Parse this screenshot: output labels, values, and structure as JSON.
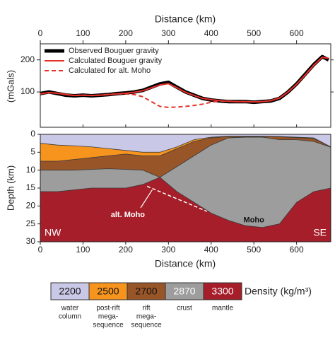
{
  "chart_data": [
    {
      "type": "line",
      "xlabel": "Distance (km)",
      "ylabel": "(mGals)",
      "xlim": [
        0,
        680
      ],
      "xticks": [
        0,
        100,
        200,
        300,
        400,
        500,
        600
      ],
      "ylim": [
        -10,
        250
      ],
      "yticks": [
        100,
        200
      ],
      "x": [
        0,
        20,
        40,
        60,
        80,
        100,
        120,
        140,
        160,
        180,
        200,
        220,
        240,
        260,
        280,
        300,
        320,
        340,
        360,
        380,
        400,
        420,
        440,
        460,
        480,
        500,
        520,
        540,
        560,
        580,
        600,
        620,
        640,
        660,
        675
      ],
      "series": [
        {
          "name": "Observed Bouguer gravity",
          "color": "#000000",
          "width": 5,
          "dash": false,
          "values": [
            95,
            100,
            95,
            90,
            88,
            90,
            88,
            90,
            92,
            95,
            97,
            100,
            105,
            115,
            125,
            130,
            115,
            100,
            90,
            80,
            75,
            72,
            70,
            70,
            70,
            68,
            70,
            72,
            80,
            100,
            125,
            155,
            185,
            210,
            200
          ]
        },
        {
          "name": "Calculated Bouguer gravity",
          "color": "#e8302a",
          "width": 2,
          "dash": false,
          "values": [
            94,
            98,
            96,
            92,
            89,
            90,
            89,
            90,
            92,
            94,
            96,
            99,
            104,
            113,
            122,
            126,
            113,
            99,
            89,
            80,
            76,
            73,
            71,
            70,
            70,
            69,
            70,
            73,
            81,
            100,
            124,
            153,
            183,
            208,
            205
          ]
        },
        {
          "name": "Calculated for alt. Moho",
          "color": "#e8302a",
          "width": 2,
          "dash": true,
          "values": [
            94,
            98,
            96,
            92,
            89,
            90,
            89,
            90,
            92,
            94,
            94,
            92,
            85,
            70,
            55,
            52,
            53,
            55,
            58,
            62,
            68,
            72,
            71,
            70,
            70,
            69,
            70,
            73,
            81,
            100,
            124,
            153,
            183,
            208,
            205
          ]
        }
      ],
      "legend": "upper-left"
    },
    {
      "type": "section",
      "xlabel": "Distance (km)",
      "ylabel": "Depth (km)",
      "xlim": [
        0,
        680
      ],
      "xticks": [
        0,
        100,
        200,
        300,
        400,
        500,
        600
      ],
      "ylim": [
        30,
        0
      ],
      "yticks": [
        0,
        5,
        10,
        15,
        20,
        25,
        30
      ],
      "x": [
        0,
        40,
        80,
        120,
        160,
        200,
        240,
        280,
        320,
        360,
        400,
        440,
        480,
        520,
        560,
        600,
        640,
        680
      ],
      "layers": [
        {
          "density": 2200,
          "color": "#c9c8e6",
          "name_lines": [
            "water",
            "column"
          ]
        },
        {
          "density": 2500,
          "color": "#f7941d",
          "name_lines": [
            "post-rift",
            "mega-",
            "sequence"
          ]
        },
        {
          "density": 2700,
          "color": "#985528",
          "name_lines": [
            "rift",
            "mega-",
            "sequence"
          ]
        },
        {
          "density": 2870,
          "color": "#9d9d9d",
          "name_lines": [
            "crust"
          ]
        },
        {
          "density": 3300,
          "color": "#a51e2a",
          "name_lines": [
            "mantle"
          ]
        }
      ],
      "boundaries": [
        [
          2.5,
          3,
          3.2,
          3.5,
          4,
          4.5,
          5,
          5,
          3.5,
          1.5,
          0.8,
          0.5,
          0.5,
          0.5,
          0.6,
          0.8,
          1,
          3.5
        ],
        [
          7.5,
          7.5,
          7,
          6.5,
          6,
          5.5,
          6,
          6,
          4,
          2,
          1,
          0.6,
          0.6,
          0.6,
          0.7,
          0.9,
          1.2,
          3.5
        ],
        [
          10,
          10,
          10,
          9.8,
          9.6,
          9.8,
          10,
          12,
          9,
          6,
          3,
          1,
          0.8,
          0.8,
          1.5,
          1.5,
          2,
          3.6
        ],
        [
          16,
          16,
          15.5,
          15,
          15,
          15,
          14,
          12,
          16,
          19,
          22,
          24,
          25.5,
          26,
          25,
          19,
          16,
          15
        ]
      ],
      "alt_moho": {
        "label": "alt. Moho",
        "x": [
          250,
          280,
          320,
          360,
          390
        ],
        "values": [
          14.5,
          16,
          18,
          20,
          21.5
        ]
      },
      "moho_label": "Moho",
      "left_label": "NW",
      "right_label": "SE",
      "density_title": "Density (kg/m³)"
    }
  ]
}
